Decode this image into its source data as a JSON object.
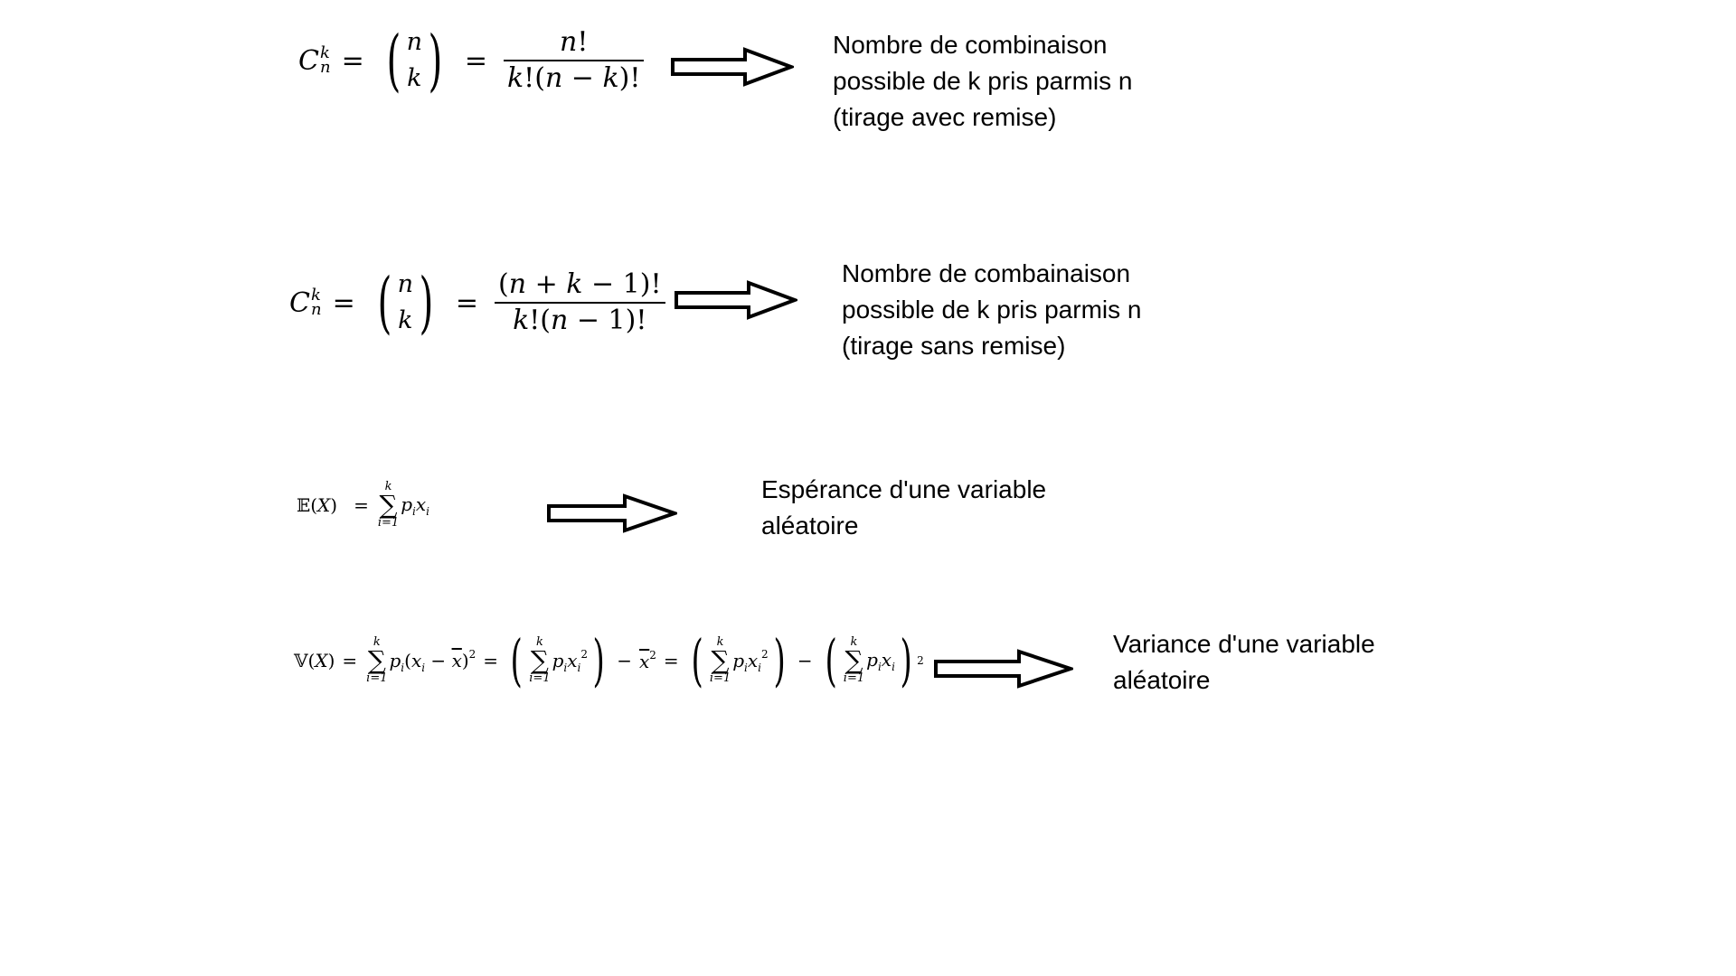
{
  "rows": [
    {
      "description_lines": [
        "Nombre de combinaison",
        "possible de k pris parmis n",
        "(tirage avec remise)"
      ]
    },
    {
      "description_lines": [
        "Nombre de combainaison",
        "possible de k pris parmis n",
        "(tirage sans remise)"
      ]
    },
    {
      "description_lines": [
        "Espérance d'une variable",
        "aléatoire"
      ]
    },
    {
      "description_lines": [
        "Variance d'une variable",
        "aléatoire"
      ]
    }
  ],
  "icons": {
    "arrow": "right-arrow-icon"
  }
}
